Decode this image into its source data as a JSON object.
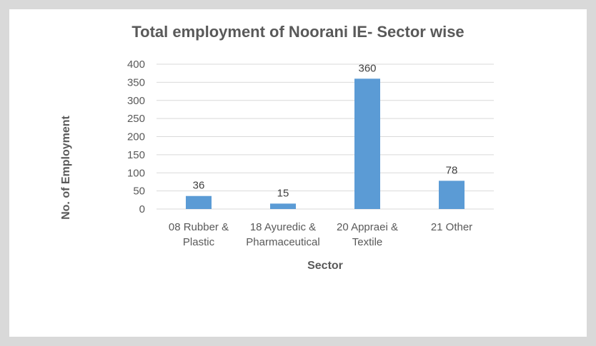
{
  "chart_data": {
    "type": "bar",
    "title": "Total employment of Noorani IE- Sector wise",
    "xlabel": "Sector",
    "ylabel": "No. of Employment",
    "categories": [
      [
        "08  Rubber &",
        "Plastic"
      ],
      [
        "18 Ayuredic &",
        "Pharmaceutical"
      ],
      [
        "20 Appraei &",
        "Textile"
      ],
      [
        "21 Other"
      ]
    ],
    "values": [
      36,
      15,
      360,
      78
    ],
    "data_labels": [
      "36",
      "15",
      "360",
      "78"
    ],
    "ylim": [
      0,
      400
    ],
    "yticks": [
      "0",
      "50",
      "100",
      "150",
      "200",
      "250",
      "300",
      "350",
      "400"
    ],
    "grid": true,
    "legend": "none",
    "colors": {
      "bar": "#5b9bd5",
      "grid": "#d9d9d9",
      "text": "#595959"
    }
  }
}
